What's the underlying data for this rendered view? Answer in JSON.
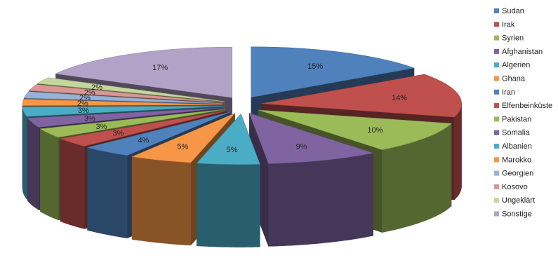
{
  "chart_data": {
    "type": "pie",
    "style": "3d-exploded",
    "legend_position": "right",
    "series": [
      {
        "name": "Sudan",
        "value": 15,
        "label": "15%",
        "color": "#4f81bd"
      },
      {
        "name": "Irak",
        "value": 14,
        "label": "14%",
        "color": "#c0504d"
      },
      {
        "name": "Syrien",
        "value": 10,
        "label": "10%",
        "color": "#9bbb59"
      },
      {
        "name": "Afghanistan",
        "value": 9,
        "label": "9%",
        "color": "#8064a2"
      },
      {
        "name": "Algerien",
        "value": 5,
        "label": "5%",
        "color": "#4bacc6"
      },
      {
        "name": "Ghana",
        "value": 5,
        "label": "5%",
        "color": "#f79646"
      },
      {
        "name": "Iran",
        "value": 4,
        "label": "4%",
        "color": "#4f81bd"
      },
      {
        "name": "Elfenbeinküste",
        "value": 3,
        "label": "3%",
        "color": "#c0504d"
      },
      {
        "name": "Pakistan",
        "value": 3,
        "label": "3%",
        "color": "#9bbb59"
      },
      {
        "name": "Somalia",
        "value": 3,
        "label": "3%",
        "color": "#8064a2"
      },
      {
        "name": "Albanien",
        "value": 3,
        "label": "3%",
        "color": "#4bacc6"
      },
      {
        "name": "Marokko",
        "value": 2,
        "label": "2%",
        "color": "#f79646"
      },
      {
        "name": "Georgien",
        "value": 2,
        "label": "2%",
        "color": "#95b3d7"
      },
      {
        "name": "Kosovo",
        "value": 2,
        "label": "2%",
        "color": "#d99694"
      },
      {
        "name": "Ungeklärt",
        "value": 2,
        "label": "2%",
        "color": "#c3d69b"
      },
      {
        "name": "Sonstige",
        "value": 17,
        "label": "17%",
        "color": "#b3a2c7"
      }
    ]
  }
}
